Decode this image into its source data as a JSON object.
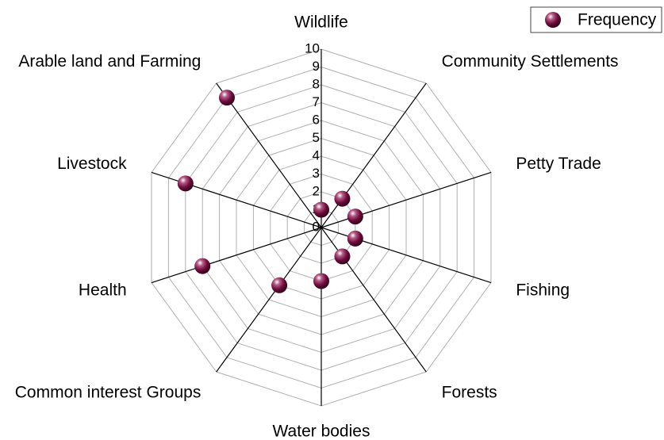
{
  "chart_data": {
    "type": "radar",
    "categories": [
      "Wildlife",
      "Community Settlements",
      "Petty Trade",
      "Fishing",
      "Forests",
      "Water bodies",
      "Common interest Groups",
      "Health",
      "Livestock",
      "Arable land and Farming"
    ],
    "series": [
      {
        "name": "Frequency",
        "color": "#6e0c3c",
        "values": [
          1,
          2,
          2,
          2,
          2,
          3,
          4,
          7,
          8,
          9
        ]
      }
    ],
    "ylim": [
      0,
      10
    ],
    "yticks": [
      0,
      1,
      2,
      3,
      4,
      5,
      6,
      7,
      8,
      9,
      10
    ],
    "grid": true,
    "legend": "top-right"
  }
}
